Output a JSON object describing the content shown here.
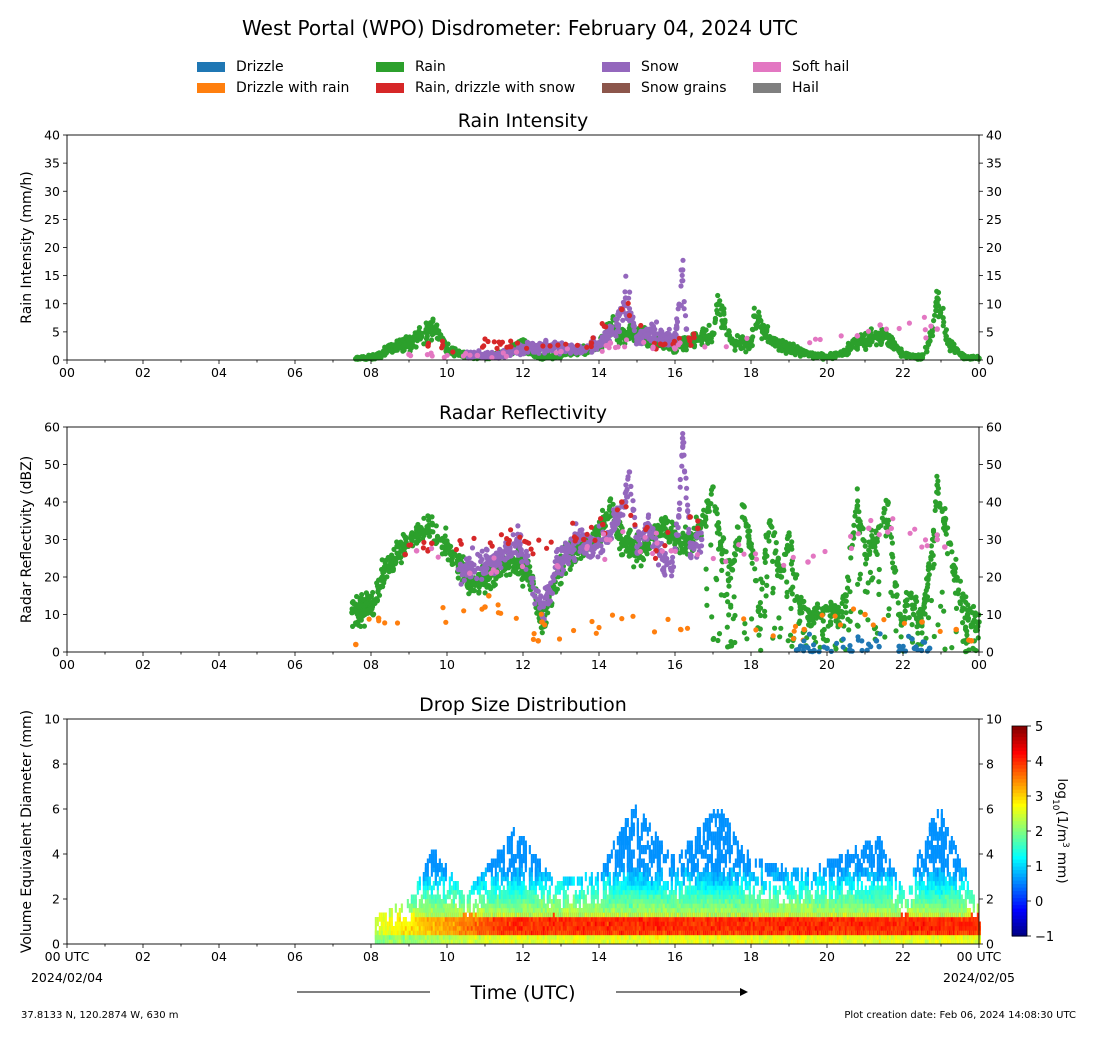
{
  "figure": {
    "title": "West Portal (WPO) Disdrometer: February 04, 2024 UTC",
    "footer_left": "37.8133 N, 120.2874 W, 630 m",
    "footer_right": "Plot creation date: Feb 06, 2024 14:08:30 UTC",
    "xlabel": "Time (UTC)"
  },
  "legend": {
    "placement": "top-center",
    "items": [
      {
        "label": "Drizzle",
        "color": "#1f77b4"
      },
      {
        "label": "Drizzle with rain",
        "color": "#ff7f0e"
      },
      {
        "label": "Rain",
        "color": "#2ca02c"
      },
      {
        "label": "Rain, drizzle with snow",
        "color": "#d62728"
      },
      {
        "label": "Snow",
        "color": "#9467bd"
      },
      {
        "label": "Snow grains",
        "color": "#8c564b"
      },
      {
        "label": "Soft hail",
        "color": "#e377c2"
      },
      {
        "label": "Hail",
        "color": "#7f7f7f"
      }
    ]
  },
  "x_ticks": [
    "00",
    "02",
    "04",
    "06",
    "08",
    "10",
    "12",
    "14",
    "16",
    "18",
    "20",
    "22",
    "00"
  ],
  "x_ticks_bottom": [
    "00 UTC",
    "02",
    "04",
    "06",
    "08",
    "10",
    "12",
    "14",
    "16",
    "18",
    "20",
    "22",
    "00 UTC"
  ],
  "x_dates": {
    "start": "2024/02/04",
    "end": "2024/02/05"
  },
  "chart_data": [
    {
      "type": "scatter",
      "title": "Rain Intensity",
      "ylabel": "Rain Intensity (mm/h)",
      "xlim": [
        0,
        24
      ],
      "ylim": [
        0,
        40
      ],
      "yticks": [
        0,
        5,
        10,
        15,
        20,
        25,
        30,
        35,
        40
      ],
      "grid": false,
      "series": [
        {
          "name": "Rain",
          "x": [
            7.6,
            8.1,
            8.4,
            8.7,
            9.0,
            9.3,
            9.5,
            9.7,
            10.0,
            10.5,
            11.0,
            11.5,
            12.0,
            12.5,
            13.0,
            13.5,
            14.0,
            14.3,
            14.6,
            15.0,
            15.5,
            16.0,
            16.4,
            17.0,
            17.1,
            17.5,
            18.0,
            18.1,
            18.5,
            19.0,
            19.5,
            20.0,
            20.5,
            20.7,
            21.0,
            21.5,
            22.0,
            22.5,
            22.8,
            22.9,
            23.2,
            23.6,
            24.0
          ],
          "y": [
            0.2,
            0.5,
            1.5,
            2.5,
            3.0,
            4.5,
            5.0,
            5.5,
            2.0,
            0.8,
            0.5,
            1.2,
            2.5,
            0.5,
            0.8,
            1.5,
            2.5,
            6.0,
            4.0,
            4.5,
            3.0,
            2.0,
            3.5,
            4.5,
            9.8,
            3.5,
            2.5,
            7.8,
            3.5,
            2.0,
            1.0,
            0.5,
            1.5,
            3.0,
            3.5,
            4.5,
            1.0,
            0.5,
            5.5,
            11.0,
            3.0,
            0.5,
            0.3
          ]
        },
        {
          "name": "Snow",
          "x": [
            10.5,
            11.4,
            12.0,
            12.6,
            13.2,
            13.6,
            14.0,
            14.5,
            14.7,
            15.0,
            15.4,
            16.0,
            16.2,
            16.3
          ],
          "y": [
            1.0,
            0.8,
            2.0,
            2.5,
            2.0,
            2.0,
            3.0,
            6.0,
            11.0,
            3.5,
            5.0,
            3.5,
            16.0,
            5.5
          ]
        },
        {
          "name": "Rain, drizzle with snow",
          "x": [
            9.5,
            13.8,
            14.6,
            15.5,
            16.5
          ],
          "y": [
            2.5,
            3.0,
            9.0,
            2.0,
            4.0
          ]
        },
        {
          "name": "Soft hail",
          "x": [
            9.0,
            10.8,
            13.0,
            14.3,
            16.0,
            20.8,
            21.4,
            22.9
          ],
          "y": [
            1.0,
            0.8,
            1.5,
            3.0,
            2.0,
            4.3,
            6.2,
            5.5
          ]
        }
      ]
    },
    {
      "type": "scatter",
      "title": "Radar Reflectivity",
      "ylabel": "Radar Reflectivity (dBZ)",
      "xlim": [
        0,
        24
      ],
      "ylim": [
        0,
        60
      ],
      "yticks": [
        0,
        10,
        20,
        30,
        40,
        50,
        60
      ],
      "grid": false,
      "series": [
        {
          "name": "Rain",
          "x": [
            7.5,
            8.1,
            8.3,
            8.6,
            8.9,
            9.2,
            9.5,
            9.8,
            10.1,
            10.4,
            10.7,
            11.0,
            11.3,
            11.6,
            11.9,
            12.2,
            12.5,
            12.8,
            13.1,
            13.5,
            13.8,
            14.1,
            14.3,
            14.6,
            15.0,
            15.3,
            15.7,
            16.0,
            16.4,
            16.8,
            17.0,
            17.2,
            17.5,
            17.8,
            18.0,
            18.2,
            18.5,
            18.8,
            19.0,
            19.3,
            19.6,
            19.9,
            20.2,
            20.5,
            20.8,
            21.0,
            21.3,
            21.6,
            21.9,
            22.2,
            22.5,
            22.8,
            22.9,
            23.1,
            23.4,
            23.7,
            24.0
          ],
          "y": [
            10.5,
            13,
            20,
            25,
            28,
            31,
            33,
            30,
            26,
            22,
            18,
            19,
            22,
            24,
            23,
            20,
            8,
            17,
            25,
            28,
            30,
            34,
            38,
            30,
            27,
            29,
            34,
            30,
            29,
            36,
            44,
            28,
            22,
            39,
            28,
            12,
            35,
            20,
            31,
            12,
            9,
            11,
            10,
            15,
            39,
            26,
            30,
            40,
            10,
            15,
            8,
            30,
            44.5,
            35,
            20,
            10,
            8
          ]
        },
        {
          "name": "Snow",
          "x": [
            10.3,
            11.2,
            11.9,
            12.5,
            12.9,
            13.2,
            13.5,
            13.9,
            14.3,
            14.7,
            14.8,
            15.0,
            15.3,
            15.6,
            15.9,
            16.1,
            16.2,
            16.4,
            16.7
          ],
          "y": [
            22,
            24,
            30,
            10,
            24,
            27,
            30,
            28,
            32,
            40,
            48,
            28,
            34,
            26,
            22,
            36,
            57,
            28,
            30
          ]
        },
        {
          "name": "Drizzle with rain",
          "x": [
            7.6,
            8.2,
            11.0,
            11.1,
            12.4,
            12.5,
            19.4,
            21.0,
            22.5,
            23.4,
            23.8
          ],
          "y": [
            2,
            9,
            12,
            15,
            3,
            8,
            6,
            10,
            8,
            6,
            3
          ]
        },
        {
          "name": "Drizzle",
          "x": [
            19.2,
            20.0,
            20.6,
            21.3,
            21.9,
            22.3,
            22.7
          ],
          "y": [
            0.5,
            1.0,
            0.5,
            3.0,
            1.5,
            1.0,
            1.0
          ]
        },
        {
          "name": "Rain, drizzle with snow",
          "x": [
            8.9,
            9.6,
            13.6,
            14.1,
            14.6,
            15.5,
            16.4,
            16.6
          ],
          "y": [
            26,
            29,
            30,
            34,
            40,
            27,
            36,
            33
          ]
        },
        {
          "name": "Soft hail",
          "x": [
            9.2,
            10.6,
            12.9,
            14.2,
            15.9,
            19.5,
            21.1,
            21.6,
            22.9,
            23.1
          ],
          "y": [
            27,
            21,
            23,
            30,
            27,
            24,
            33,
            32,
            30,
            28
          ]
        }
      ]
    },
    {
      "type": "heatmap",
      "title": "Drop Size Distribution",
      "ylabel": "Volume Equivalent Diameter (mm)",
      "xlim": [
        0,
        24
      ],
      "ylim": [
        0,
        10
      ],
      "yticks": [
        0,
        2,
        4,
        6,
        8,
        10
      ],
      "colorbar": {
        "label": "log10(1/m3 mm)",
        "range": [
          -1,
          5
        ],
        "ticks": [
          -1,
          0,
          1,
          2,
          3,
          4,
          5
        ],
        "colormap": "jet"
      },
      "start_hour": 8.1,
      "end_hour": 24.0,
      "core_diameter_range": [
        0.5,
        1.2
      ],
      "top_extent": [
        {
          "hour": 8.1,
          "diameter": 1.0
        },
        {
          "hour": 9.0,
          "diameter": 1.8
        },
        {
          "hour": 9.6,
          "diameter": 4.0
        },
        {
          "hour": 10.5,
          "diameter": 2.0
        },
        {
          "hour": 11.8,
          "diameter": 5.0
        },
        {
          "hour": 12.8,
          "diameter": 2.5
        },
        {
          "hour": 14.0,
          "diameter": 3.0
        },
        {
          "hour": 14.9,
          "diameter": 6.0
        },
        {
          "hour": 16.0,
          "diameter": 3.5
        },
        {
          "hour": 17.1,
          "diameter": 6.0
        },
        {
          "hour": 18.0,
          "diameter": 3.5
        },
        {
          "hour": 19.5,
          "diameter": 3.0
        },
        {
          "hour": 20.7,
          "diameter": 4.0
        },
        {
          "hour": 21.4,
          "diameter": 4.5
        },
        {
          "hour": 22.0,
          "diameter": 2.0
        },
        {
          "hour": 22.9,
          "diameter": 6.0
        },
        {
          "hour": 24.0,
          "diameter": 1.5
        }
      ]
    }
  ]
}
